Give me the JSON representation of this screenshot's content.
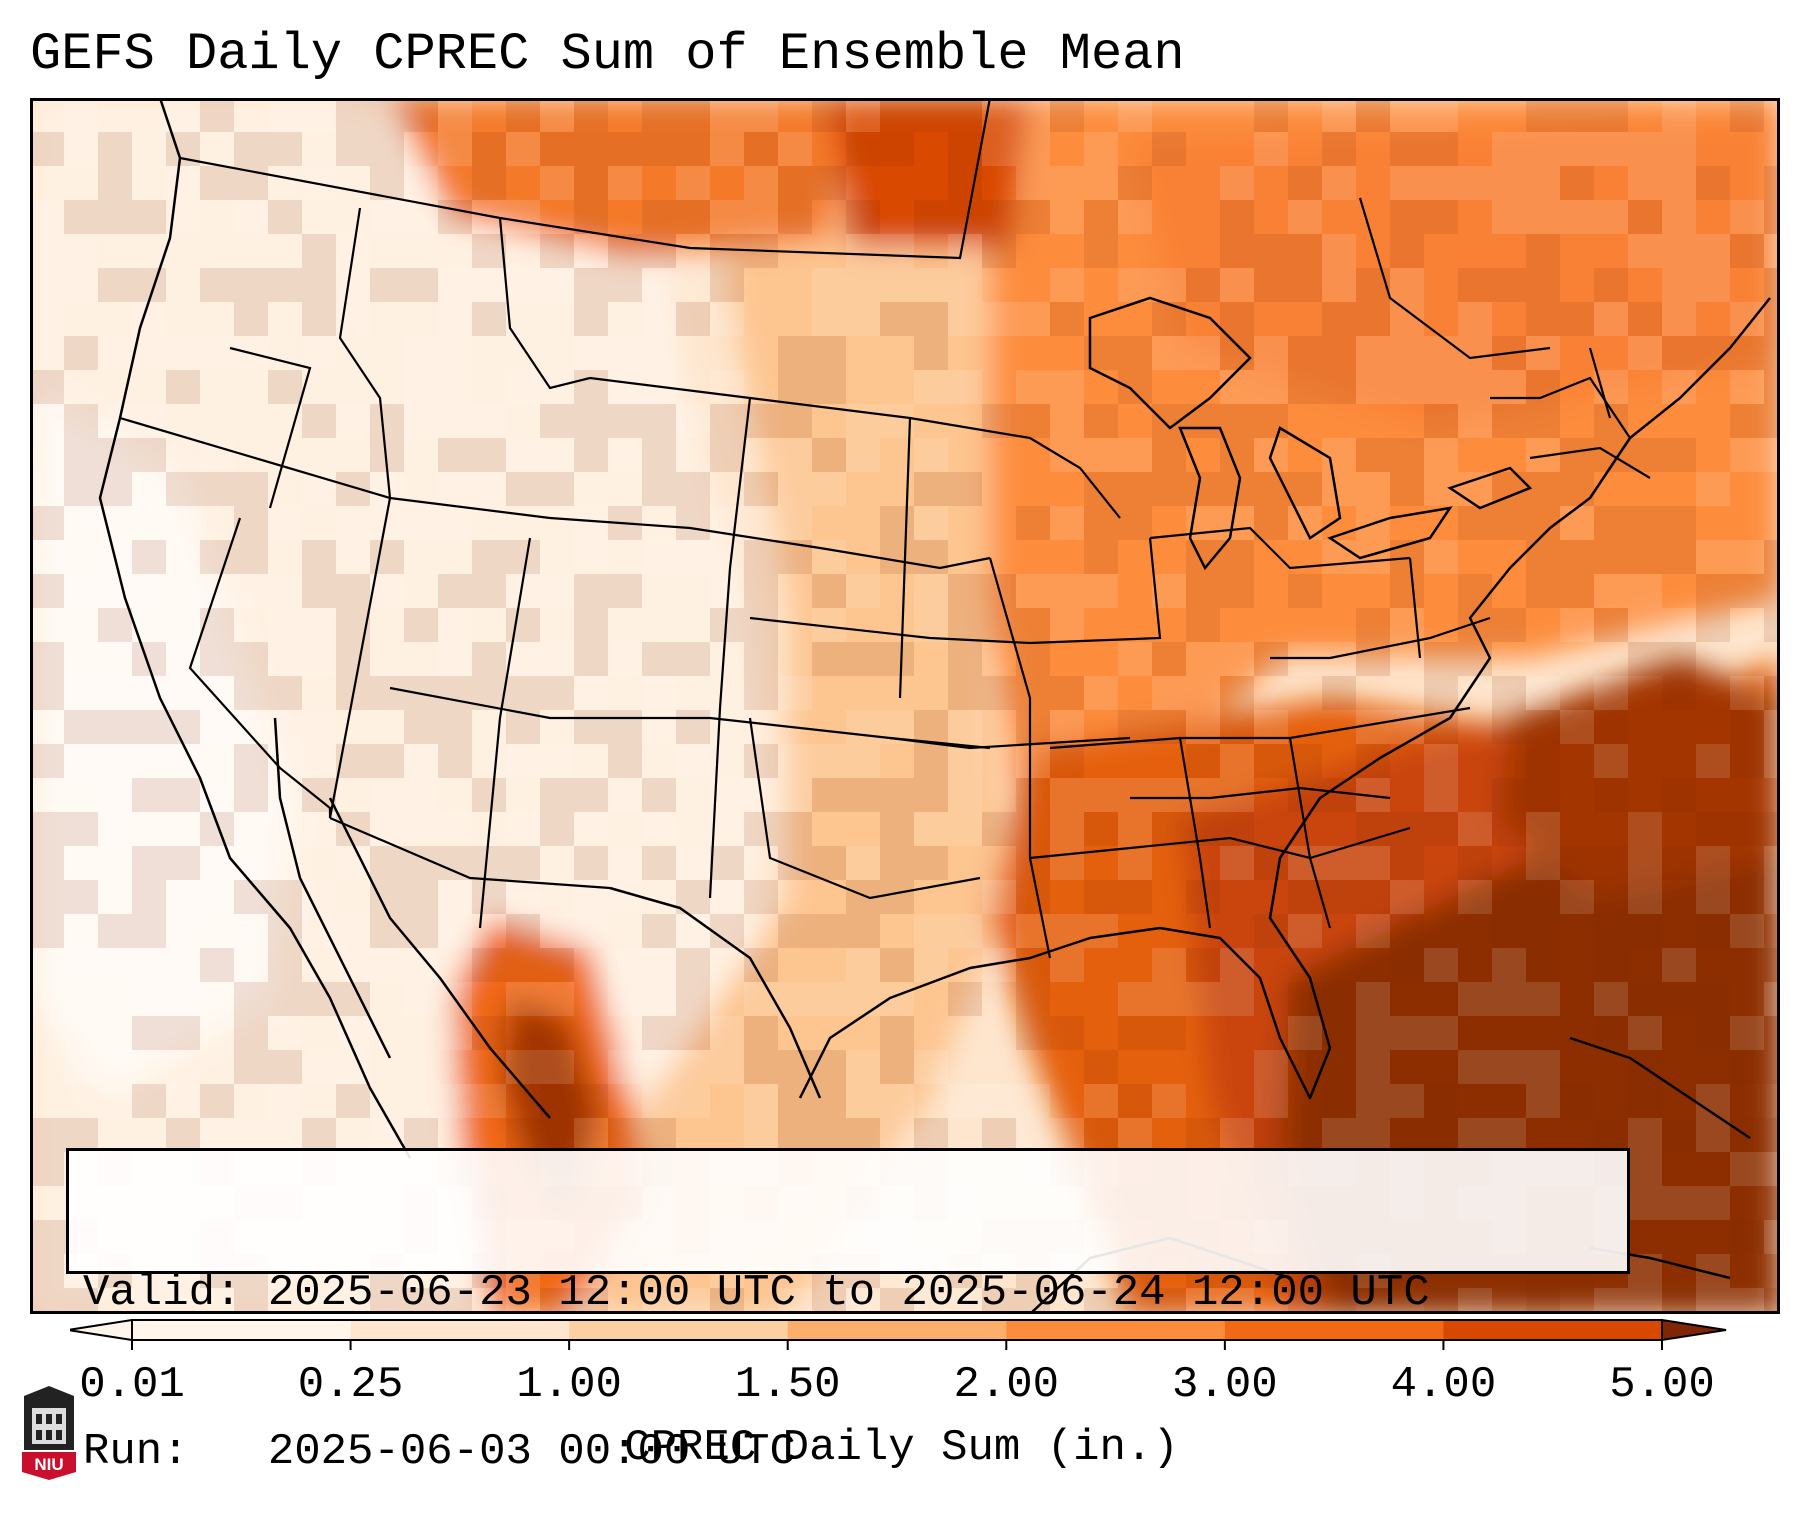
{
  "title": "GEFS Daily CPREC Sum of Ensemble Mean",
  "info": {
    "valid_label": "Valid:",
    "valid_value": "2025-06-23 12:00 UTC to 2025-06-24 12:00 UTC",
    "run_label": "Run:",
    "run_value": "2025-06-03 00:00 UTC"
  },
  "colorbar": {
    "label": "CPREC Daily Sum (in.)",
    "ticks": [
      "0.01",
      "0.25",
      "1.00",
      "1.50",
      "2.00",
      "3.00",
      "4.00",
      "5.00"
    ],
    "colors": [
      "#fff5eb",
      "#fee6ce",
      "#fdd0a2",
      "#fdae6b",
      "#fd8d3c",
      "#f16913",
      "#d94801",
      "#8c2d04"
    ],
    "under_color": "#fff5eb",
    "over_color": "#7f2704"
  },
  "logo": {
    "text": "NIU",
    "color": "#c8102e"
  }
}
